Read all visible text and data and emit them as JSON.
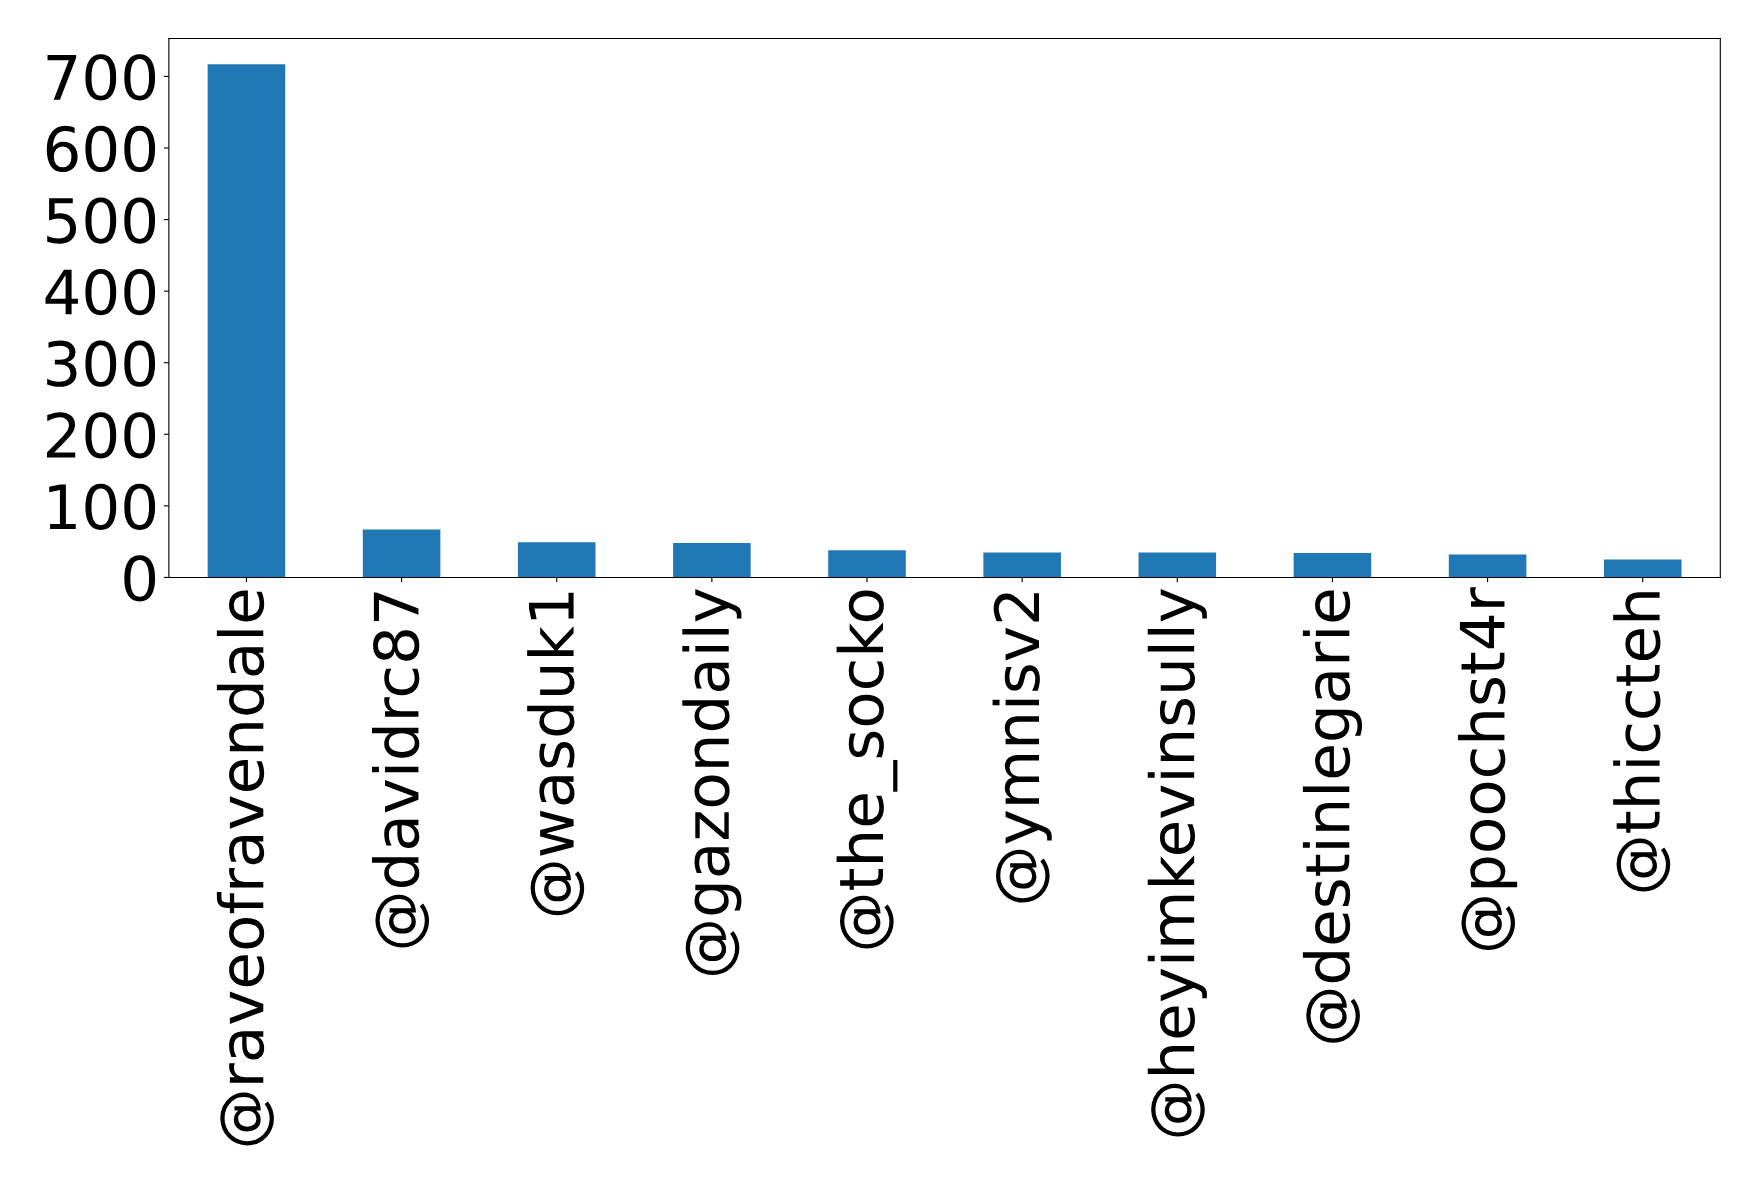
{
  "chart_data": {
    "type": "bar",
    "categories": [
      "@raveofravendale",
      "@davidrc87",
      "@wasduk1",
      "@gazondaily",
      "@the_socko",
      "@ymnisv2",
      "@heyimkevinsully",
      "@destinlegarie",
      "@poochst4r",
      "@thiccteh"
    ],
    "values": [
      717,
      67,
      49,
      48,
      38,
      35,
      35,
      34,
      32,
      25
    ],
    "color": "#1f77b4",
    "ylim": [
      0,
      753
    ],
    "yticks": [
      0,
      100,
      200,
      300,
      400,
      500,
      600,
      700
    ],
    "grid": false,
    "legend": false
  }
}
